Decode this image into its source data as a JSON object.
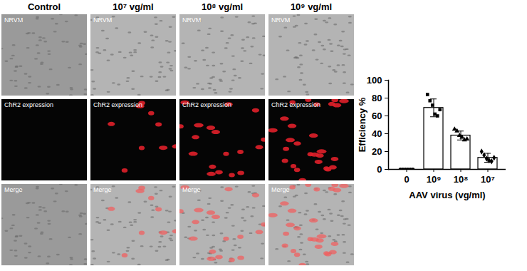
{
  "image_grid": {
    "columns": [
      "Control",
      "10⁷ vg/ml",
      "10⁸ vg/ml",
      "10⁹ vg/ml"
    ],
    "rows": [
      "NRVM",
      "ChR2 expression",
      "Merge"
    ]
  },
  "chart_data": {
    "type": "bar",
    "categories": [
      "0",
      "10⁹",
      "10⁸",
      "10⁷"
    ],
    "values": [
      0,
      69,
      38,
      13
    ],
    "errors": [
      0,
      10,
      5,
      5
    ],
    "points": [
      [
        0,
        0,
        0,
        0,
        0,
        0
      ],
      [
        84,
        77,
        72,
        62,
        60,
        67
      ],
      [
        45,
        43,
        38,
        36,
        33,
        34
      ],
      [
        20,
        16,
        12,
        10,
        9,
        13
      ]
    ],
    "color": "#ffffff",
    "x_label": "AAV virus (vg/ml)",
    "y_label": "Efficiency %",
    "ylim": [
      0,
      100
    ],
    "yticks": [
      0,
      20,
      40,
      60,
      80,
      100
    ],
    "grid": false
  }
}
